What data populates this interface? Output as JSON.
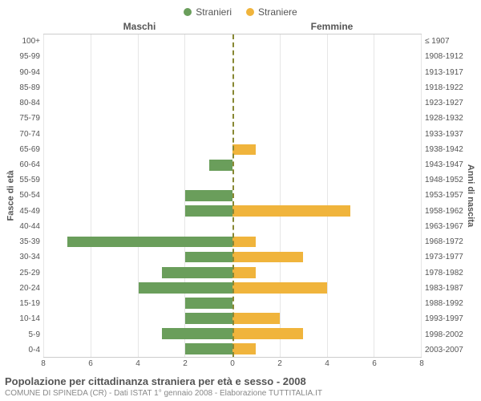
{
  "legend": {
    "male": {
      "label": "Stranieri",
      "color": "#6a9e5b"
    },
    "female": {
      "label": "Straniere",
      "color": "#f0b43c"
    }
  },
  "headers": {
    "left": "Maschi",
    "right": "Femmine"
  },
  "axis_titles": {
    "left": "Fasce di età",
    "right": "Anni di nascita"
  },
  "chart": {
    "xmax": 8,
    "xtick_step": 2,
    "xticks": [
      8,
      6,
      4,
      2,
      0,
      2,
      4,
      6,
      8
    ],
    "background_color": "#ffffff",
    "grid_color": "#e6e6e6",
    "center_line_color": "#888833",
    "male_bar_color": "#6a9e5b",
    "female_bar_color": "#f0b43c",
    "label_color": "#555555",
    "label_fontsize": 10,
    "title_fontsize": 13
  },
  "rows": [
    {
      "age": "100+",
      "birth": "≤ 1907",
      "male": 0,
      "female": 0
    },
    {
      "age": "95-99",
      "birth": "1908-1912",
      "male": 0,
      "female": 0
    },
    {
      "age": "90-94",
      "birth": "1913-1917",
      "male": 0,
      "female": 0
    },
    {
      "age": "85-89",
      "birth": "1918-1922",
      "male": 0,
      "female": 0
    },
    {
      "age": "80-84",
      "birth": "1923-1927",
      "male": 0,
      "female": 0
    },
    {
      "age": "75-79",
      "birth": "1928-1932",
      "male": 0,
      "female": 0
    },
    {
      "age": "70-74",
      "birth": "1933-1937",
      "male": 0,
      "female": 0
    },
    {
      "age": "65-69",
      "birth": "1938-1942",
      "male": 0,
      "female": 1
    },
    {
      "age": "60-64",
      "birth": "1943-1947",
      "male": 1,
      "female": 0
    },
    {
      "age": "55-59",
      "birth": "1948-1952",
      "male": 0,
      "female": 0
    },
    {
      "age": "50-54",
      "birth": "1953-1957",
      "male": 2,
      "female": 0
    },
    {
      "age": "45-49",
      "birth": "1958-1962",
      "male": 2,
      "female": 5
    },
    {
      "age": "40-44",
      "birth": "1963-1967",
      "male": 0,
      "female": 0
    },
    {
      "age": "35-39",
      "birth": "1968-1972",
      "male": 7,
      "female": 1
    },
    {
      "age": "30-34",
      "birth": "1973-1977",
      "male": 2,
      "female": 3
    },
    {
      "age": "25-29",
      "birth": "1978-1982",
      "male": 3,
      "female": 1
    },
    {
      "age": "20-24",
      "birth": "1983-1987",
      "male": 4,
      "female": 4
    },
    {
      "age": "15-19",
      "birth": "1988-1992",
      "male": 2,
      "female": 0
    },
    {
      "age": "10-14",
      "birth": "1993-1997",
      "male": 2,
      "female": 2
    },
    {
      "age": "5-9",
      "birth": "1998-2002",
      "male": 3,
      "female": 3
    },
    {
      "age": "0-4",
      "birth": "2003-2007",
      "male": 2,
      "female": 1
    }
  ],
  "title": "Popolazione per cittadinanza straniera per età e sesso - 2008",
  "subtitle": "COMUNE DI SPINEDA (CR) - Dati ISTAT 1° gennaio 2008 - Elaborazione TUTTITALIA.IT"
}
